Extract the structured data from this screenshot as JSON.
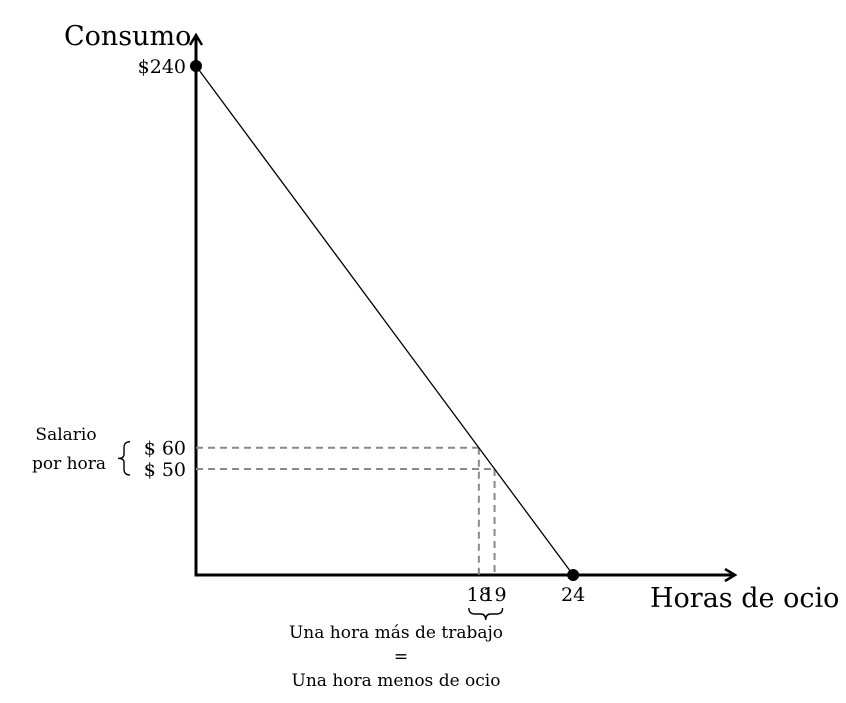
{
  "chart_data": {
    "type": "line",
    "title": "",
    "xlabel": "Horas de ocio",
    "ylabel": "Consumo",
    "xlim": [
      0,
      34.3
    ],
    "ylim": [
      0,
      254.6
    ],
    "series": [
      {
        "name": "",
        "x": [
          0,
          24
        ],
        "y": [
          240,
          0
        ]
      }
    ],
    "endpoints": [
      {
        "x": 0,
        "y": 240
      },
      {
        "x": 24,
        "y": 0
      }
    ],
    "reference_points": [
      {
        "x": 18,
        "y": 60
      },
      {
        "x": 19,
        "y": 50
      }
    ],
    "x_tick_labels": [
      {
        "value": 18,
        "label": "18"
      },
      {
        "value": 19,
        "label": "19"
      },
      {
        "value": 24,
        "label": "24"
      }
    ],
    "y_tick_labels": [
      {
        "value": 240,
        "label": "$240"
      },
      {
        "value": 60,
        "label": "$ 60"
      },
      {
        "value": 50,
        "label": "$ 50"
      }
    ],
    "annotations": {
      "wage_line1": "Salario",
      "wage_line2": "por hora",
      "hours_line1": "Una hora más de trabajo",
      "hours_equals": "=",
      "hours_line2": "Una hora menos de ocio"
    },
    "grid": false,
    "legend": "none"
  }
}
